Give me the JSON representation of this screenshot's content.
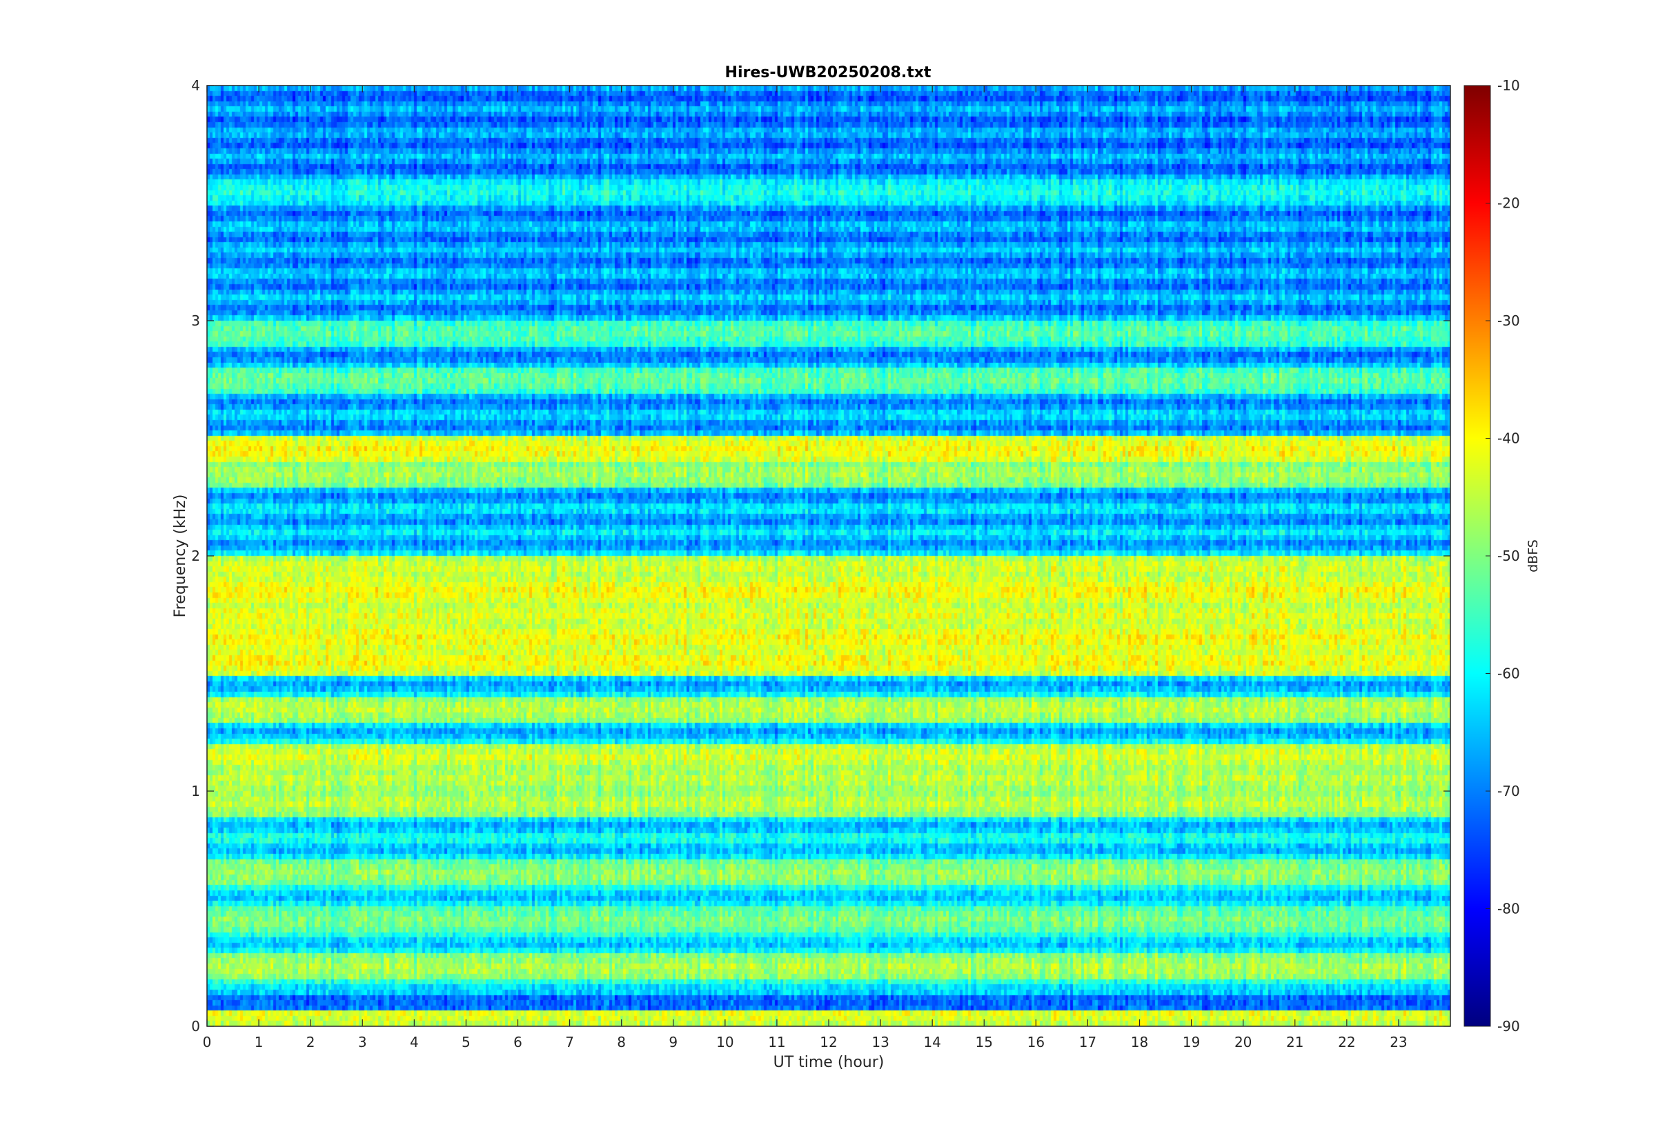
{
  "chart_data": {
    "type": "heatmap",
    "title": "Hires-UWB20250208.txt",
    "xlabel": "UT time (hour)",
    "ylabel": "Frequency (kHz)",
    "x_ticks": [
      "0",
      "1",
      "2",
      "3",
      "4",
      "5",
      "6",
      "7",
      "8",
      "9",
      "10",
      "11",
      "12",
      "13",
      "14",
      "15",
      "16",
      "17",
      "18",
      "19",
      "20",
      "21",
      "22",
      "23"
    ],
    "y_ticks": [
      "0",
      "1",
      "2",
      "3",
      "4"
    ],
    "xlim": [
      0,
      24
    ],
    "ylim": [
      0,
      4
    ],
    "colorbar": {
      "label": "dBFS",
      "ticks": [
        "-10",
        "-20",
        "-30",
        "-40",
        "-50",
        "-60",
        "-70",
        "-80",
        "-90"
      ],
      "clim": [
        -90,
        -10
      ],
      "colormap": "jet"
    },
    "bands": [
      {
        "f": 0.05,
        "level": -42
      },
      {
        "f": 0.25,
        "level": -46
      },
      {
        "f": 0.45,
        "level": -50
      },
      {
        "f": 0.65,
        "level": -48
      },
      {
        "f": 0.95,
        "level": -45
      },
      {
        "f": 1.05,
        "level": -45
      },
      {
        "f": 1.15,
        "level": -43
      },
      {
        "f": 1.35,
        "level": -45
      },
      {
        "f": 1.55,
        "level": -40
      },
      {
        "f": 1.65,
        "level": -40
      },
      {
        "f": 1.75,
        "level": -42
      },
      {
        "f": 1.85,
        "level": -40
      },
      {
        "f": 1.95,
        "level": -43
      },
      {
        "f": 2.35,
        "level": -47
      },
      {
        "f": 2.45,
        "level": -40
      },
      {
        "f": 2.75,
        "level": -52
      },
      {
        "f": 2.95,
        "level": -53
      },
      {
        "f": 3.55,
        "level": -58
      }
    ],
    "low_level_stripe": {
      "f": 0.1,
      "level": -72
    }
  }
}
